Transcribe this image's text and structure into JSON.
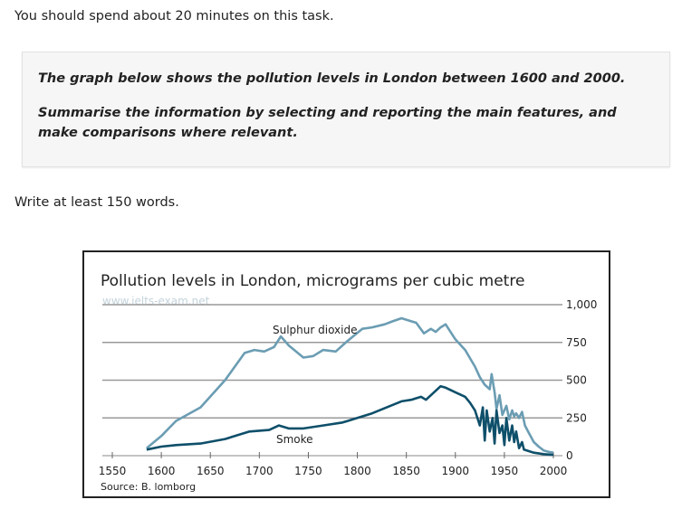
{
  "instructions": "You should spend about 20 minutes on this task.",
  "task": {
    "line1": "The graph below shows the pollution levels in London between 1600 and 2000.",
    "line2": "Summarise the information by selecting and reporting the main features, and make comparisons where relevant."
  },
  "word_limit": "Write at least 150 words.",
  "chart_data": {
    "type": "line",
    "title": "Pollution levels in London, micrograms per cubic metre",
    "watermark": "www.ielts-exam.net",
    "source": "Source: B. lomborg",
    "xlabel": "",
    "ylabel": "",
    "xlim": [
      1550,
      2000
    ],
    "ylim": [
      0,
      1000
    ],
    "xticks": [
      "1550",
      "1600",
      "1650",
      "1700",
      "1750",
      "1800",
      "1850",
      "1900",
      "1950",
      "2000"
    ],
    "yticks": [
      "0",
      "250",
      "500",
      "750",
      "1,000"
    ],
    "grid": true,
    "series": [
      {
        "name": "Sulphur dioxide",
        "color": "#6b9db3",
        "x": [
          1585,
          1600,
          1615,
          1640,
          1665,
          1685,
          1695,
          1705,
          1715,
          1722,
          1730,
          1745,
          1755,
          1765,
          1778,
          1790,
          1805,
          1815,
          1828,
          1836,
          1845,
          1855,
          1860,
          1868,
          1875,
          1880,
          1885,
          1890,
          1900,
          1910,
          1920,
          1925,
          1930,
          1935,
          1937,
          1940,
          1942,
          1945,
          1948,
          1952,
          1955,
          1958,
          1960,
          1962,
          1965,
          1968,
          1971,
          1975,
          1980,
          1985,
          1990,
          1995,
          2000
        ],
        "y": [
          50,
          130,
          230,
          320,
          500,
          680,
          700,
          690,
          720,
          790,
          730,
          650,
          660,
          700,
          690,
          760,
          840,
          850,
          870,
          890,
          910,
          890,
          880,
          810,
          840,
          820,
          850,
          870,
          770,
          700,
          590,
          520,
          470,
          440,
          540,
          420,
          310,
          400,
          270,
          330,
          240,
          300,
          260,
          280,
          250,
          290,
          200,
          150,
          90,
          60,
          35,
          25,
          20
        ]
      },
      {
        "name": "Smoke",
        "color": "#0e4f6a",
        "x": [
          1585,
          1600,
          1615,
          1640,
          1665,
          1690,
          1710,
          1720,
          1730,
          1745,
          1765,
          1785,
          1800,
          1815,
          1830,
          1845,
          1855,
          1860,
          1865,
          1870,
          1875,
          1880,
          1885,
          1890,
          1900,
          1910,
          1915,
          1920,
          1925,
          1928,
          1930,
          1932,
          1935,
          1938,
          1940,
          1942,
          1945,
          1948,
          1950,
          1952,
          1955,
          1958,
          1960,
          1962,
          1965,
          1968,
          1970,
          1975,
          1980,
          1990,
          2000
        ],
        "y": [
          40,
          60,
          70,
          80,
          110,
          160,
          170,
          200,
          180,
          180,
          200,
          220,
          250,
          280,
          320,
          360,
          370,
          380,
          390,
          370,
          400,
          430,
          460,
          450,
          420,
          390,
          350,
          300,
          200,
          320,
          100,
          300,
          160,
          250,
          80,
          300,
          150,
          200,
          70,
          250,
          100,
          200,
          90,
          160,
          50,
          90,
          40,
          30,
          20,
          10,
          5
        ]
      }
    ]
  }
}
